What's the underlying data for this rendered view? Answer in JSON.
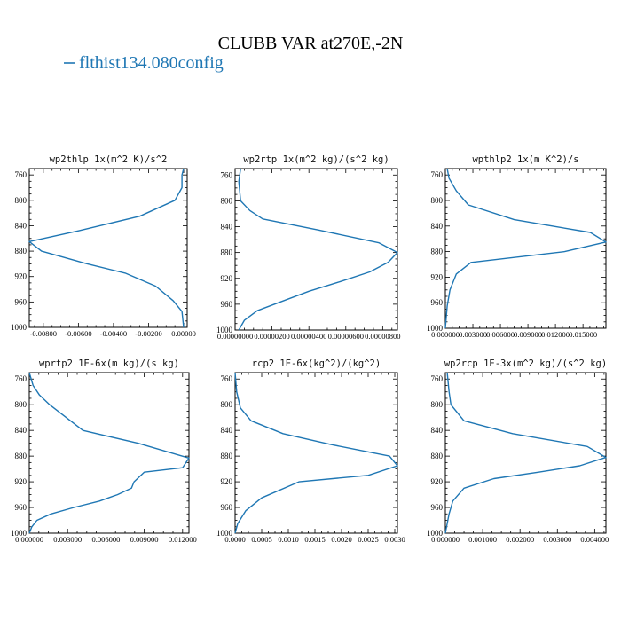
{
  "figure": {
    "title": "CLUBB VAR at270E,-2N",
    "legend": {
      "label": "flthist134.080config",
      "color": "#1f77b4"
    }
  },
  "chart_data": [
    {
      "type": "line",
      "title": "wp2thlp   1x(m^2 K)/s^2",
      "xlim": [
        -0.0088,
        0.0002
      ],
      "ylim": [
        1000,
        750
      ],
      "xticks": [
        -0.008,
        -0.006,
        -0.004,
        -0.002,
        0.0
      ],
      "xtick_labels": [
        "-0.00800",
        "-0.00600",
        "-0.00400",
        "-0.00200",
        "0.00000"
      ],
      "yticks": [
        760,
        800,
        840,
        880,
        920,
        960,
        1000
      ],
      "series": [
        {
          "color": "#1f77b4",
          "x": [
            0.0,
            -0.0001,
            -0.0001,
            -0.0005,
            -0.0025,
            -0.006,
            -0.0088,
            -0.0081,
            -0.0055,
            -0.0033,
            -0.0016,
            -0.0006,
            -0.0001,
            0.0
          ],
          "y": [
            750,
            760,
            780,
            800,
            825,
            848,
            865,
            880,
            900,
            915,
            935,
            958,
            975,
            1000
          ]
        }
      ]
    },
    {
      "type": "line",
      "title": "wp2rtp  1x(m^2 kg)/(s^2 kg)",
      "xlim": [
        0.0,
        8.8e-06
      ],
      "ylim": [
        1000,
        750
      ],
      "xticks": [
        0.0,
        2e-06,
        4e-06,
        6e-06,
        8e-06
      ],
      "xtick_labels": [
        "0.00000000",
        "0.00000200",
        "0.00000400",
        "0.00000600",
        "0.00000800"
      ],
      "yticks": [
        760,
        800,
        840,
        880,
        920,
        960,
        1000
      ],
      "series": [
        {
          "color": "#1f77b4",
          "x": [
            3e-07,
            2e-07,
            3e-07,
            8e-07,
            1.5e-06,
            4.5e-06,
            7.8e-06,
            8.8e-06,
            8.3e-06,
            7.3e-06,
            5.7e-06,
            4e-06,
            2.6e-06,
            1.2e-06,
            5e-07,
            2e-07
          ],
          "y": [
            750,
            770,
            800,
            815,
            828,
            845,
            865,
            880,
            895,
            910,
            925,
            940,
            955,
            970,
            985,
            1000
          ]
        }
      ]
    },
    {
      "type": "line",
      "title": "wpthlp2  1x(m K^2)/s",
      "xlim": [
        0.0,
        0.0175
      ],
      "ylim": [
        1000,
        750
      ],
      "xticks": [
        0.0,
        0.003,
        0.006,
        0.009,
        0.012,
        0.015
      ],
      "xtick_labels": [
        "0.000000",
        "0.003000",
        "0.006000",
        "0.009000",
        "0.012000",
        "0.015000"
      ],
      "yticks": [
        760,
        800,
        840,
        880,
        920,
        960,
        1000
      ],
      "series": [
        {
          "color": "#1f77b4",
          "x": [
            0.0002,
            0.0004,
            0.0012,
            0.0025,
            0.0075,
            0.0158,
            0.0175,
            0.013,
            0.0028,
            0.0012,
            0.0005,
            0.0002,
            0.0
          ],
          "y": [
            750,
            765,
            785,
            807,
            830,
            850,
            865,
            880,
            897,
            915,
            940,
            965,
            1000
          ]
        }
      ]
    },
    {
      "type": "line",
      "title": "wprtp2  1E-6x(m kg)/(s kg)",
      "xlim": [
        0.0,
        0.0125
      ],
      "ylim": [
        1000,
        750
      ],
      "xticks": [
        0.0,
        0.003,
        0.006,
        0.009,
        0.012
      ],
      "xtick_labels": [
        "0.000000",
        "0.003000",
        "0.006000",
        "0.009000",
        "0.012000"
      ],
      "yticks": [
        760,
        800,
        840,
        880,
        920,
        960,
        1000
      ],
      "series": [
        {
          "color": "#1f77b4",
          "x": [
            0.0,
            0.0003,
            0.0008,
            0.0016,
            0.0042,
            0.0085,
            0.0125,
            0.012,
            0.009,
            0.0082,
            0.008,
            0.0069,
            0.0055,
            0.0035,
            0.0017,
            0.0006,
            0.0002,
            0.0
          ],
          "y": [
            750,
            770,
            785,
            800,
            840,
            860,
            883,
            898,
            905,
            920,
            930,
            940,
            950,
            960,
            970,
            980,
            990,
            1000
          ]
        }
      ]
    },
    {
      "type": "line",
      "title": "rcp2  1E-6x(kg^2)/(kg^2)",
      "xlim": [
        0.0,
        0.00305
      ],
      "ylim": [
        1000,
        750
      ],
      "xticks": [
        0.0,
        0.0005,
        0.001,
        0.0015,
        0.002,
        0.0025,
        0.003
      ],
      "xtick_labels": [
        "0.0000",
        "0.0005",
        "0.0010",
        "0.0015",
        "0.0020",
        "0.0025",
        "0.0030"
      ],
      "yticks": [
        760,
        800,
        840,
        880,
        920,
        960,
        1000
      ],
      "series": [
        {
          "color": "#1f77b4",
          "x": [
            0.0,
            3e-05,
            0.0001,
            0.0003,
            0.0009,
            0.0018,
            0.0029,
            0.00305,
            0.0025,
            0.0012,
            0.0005,
            0.0002,
            5e-05,
            0.0
          ],
          "y": [
            750,
            780,
            805,
            825,
            845,
            862,
            880,
            895,
            910,
            920,
            945,
            965,
            985,
            1000
          ]
        }
      ]
    },
    {
      "type": "line",
      "title": "wp2rcp  1E-3x(m^2 kg)/(s^2 kg)",
      "xlim": [
        0.0,
        0.0043
      ],
      "ylim": [
        1000,
        750
      ],
      "xticks": [
        0.0,
        0.001,
        0.002,
        0.003,
        0.004
      ],
      "xtick_labels": [
        "0.000000",
        "0.001000",
        "0.002000",
        "0.003000",
        "0.004000"
      ],
      "yticks": [
        760,
        800,
        840,
        880,
        920,
        960,
        1000
      ],
      "series": [
        {
          "color": "#1f77b4",
          "x": [
            5e-05,
            0.0001,
            0.00015,
            0.0005,
            0.0018,
            0.0038,
            0.0043,
            0.0036,
            0.0025,
            0.0013,
            0.0005,
            0.0002,
            0.0001,
            0.0
          ],
          "y": [
            750,
            780,
            800,
            825,
            845,
            865,
            882,
            895,
            905,
            915,
            930,
            950,
            970,
            1000
          ]
        }
      ]
    }
  ]
}
